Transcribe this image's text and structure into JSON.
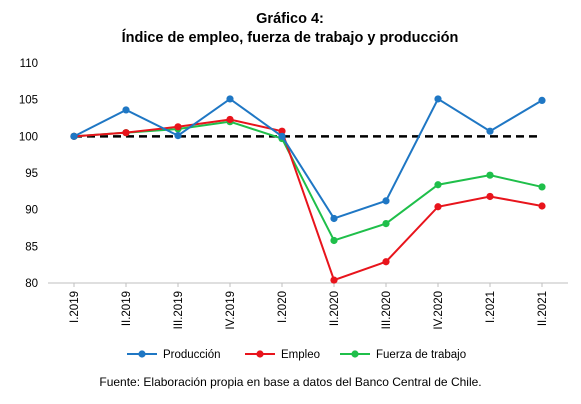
{
  "chart_data": {
    "type": "line",
    "title": "Gráfico 4:",
    "subtitle": "Índice de empleo, fuerza de trabajo y producción",
    "categories": [
      "I.2019",
      "II.2019",
      "III.2019",
      "IV.2019",
      "I.2020",
      "II.2020",
      "III.2020",
      "IV.2020",
      "I.2021",
      "II.2021"
    ],
    "ylim": [
      80,
      110
    ],
    "yticks": [
      80,
      85,
      90,
      95,
      100,
      105,
      110
    ],
    "reference_line": 100,
    "grid": false,
    "legend_position": "bottom",
    "series": [
      {
        "name": "Producción",
        "color": "#1f77c4",
        "values": [
          100.0,
          103.6,
          100.1,
          105.1,
          100.0,
          88.8,
          91.2,
          105.1,
          100.7,
          104.9
        ]
      },
      {
        "name": "Empleo",
        "color": "#e8141c",
        "values": [
          100.0,
          100.5,
          101.3,
          102.3,
          100.7,
          80.4,
          82.9,
          90.4,
          91.8,
          90.5
        ]
      },
      {
        "name": "Fuerza de trabajo",
        "color": "#1fbf4a",
        "values": [
          100.0,
          100.5,
          101.0,
          102.0,
          99.7,
          85.8,
          88.1,
          93.4,
          94.7,
          93.1
        ]
      }
    ]
  },
  "source_note": "Fuente: Elaboración propia en base a datos del Banco Central de Chile."
}
